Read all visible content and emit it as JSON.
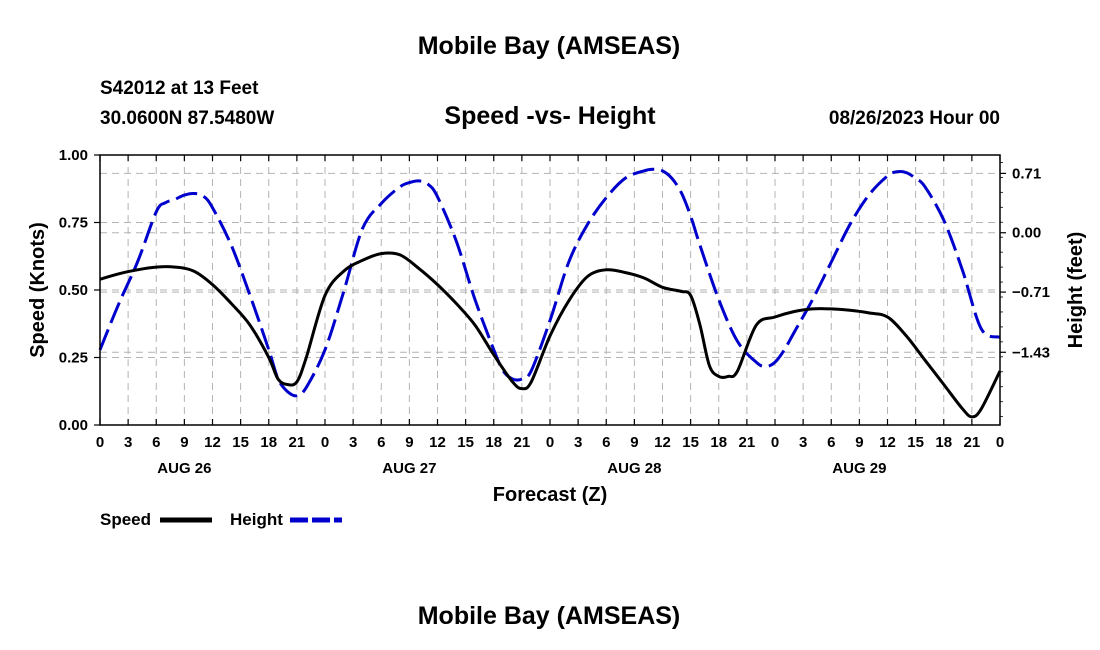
{
  "chart_data": {
    "type": "line",
    "title": "Mobile Bay (AMSEAS)",
    "subtitle": "Speed -vs- Height",
    "station": "S42012 at 13 Feet",
    "coords": "30.0600N  87.5480W",
    "run_time": "08/26/2023 Hour 00",
    "xlabel": "Forecast (Z)",
    "ylabel_left": "Speed (Knots)",
    "ylabel_right": "Height (feet)",
    "x_unit": "forecast hour",
    "xlim": [
      0,
      96
    ],
    "x_tick_labels": [
      "0",
      "3",
      "6",
      "9",
      "12",
      "15",
      "18",
      "21",
      "0",
      "3",
      "6",
      "9",
      "12",
      "15",
      "18",
      "21",
      "0",
      "3",
      "6",
      "9",
      "12",
      "15",
      "18",
      "21",
      "0",
      "3",
      "6",
      "9",
      "12",
      "15",
      "18",
      "21",
      "0"
    ],
    "day_labels": [
      {
        "text": "AUG 26",
        "hour": 9
      },
      {
        "text": "AUG 27",
        "hour": 33
      },
      {
        "text": "AUG 28",
        "hour": 57
      },
      {
        "text": "AUG 29",
        "hour": 81
      }
    ],
    "ylim_left": [
      0,
      1
    ],
    "yticks_left": [
      "0.00",
      "0.25",
      "0.50",
      "0.75",
      "1.00"
    ],
    "ylim_right": [
      -2.3,
      0.93
    ],
    "yticks_right_values": [
      0.71,
      0.0,
      -0.71,
      -1.43
    ],
    "yticks_right": [
      "0.71",
      "0.00",
      "−0.71",
      "−1.43"
    ],
    "grid": true,
    "legend_position": "bottom-left",
    "series": [
      {
        "name": "Speed",
        "color": "#000000",
        "style": "solid",
        "axis": "left",
        "x": [
          0,
          2,
          4,
          6,
          8,
          10,
          12,
          14,
          16,
          18,
          19,
          20,
          21,
          22,
          24,
          26,
          28,
          30,
          32,
          34,
          36,
          38,
          40,
          42,
          44,
          45,
          46,
          48,
          50,
          52,
          54,
          56,
          58,
          60,
          62,
          63,
          64,
          65,
          66,
          67,
          68,
          70,
          72,
          74,
          76,
          78,
          80,
          82,
          84,
          86,
          88,
          90,
          92,
          93,
          94,
          96
        ],
        "values": [
          0.54,
          0.56,
          0.575,
          0.585,
          0.585,
          0.57,
          0.52,
          0.45,
          0.37,
          0.25,
          0.17,
          0.15,
          0.16,
          0.25,
          0.48,
          0.57,
          0.61,
          0.635,
          0.63,
          0.58,
          0.52,
          0.45,
          0.37,
          0.26,
          0.16,
          0.135,
          0.16,
          0.33,
          0.46,
          0.55,
          0.575,
          0.565,
          0.545,
          0.51,
          0.495,
          0.48,
          0.37,
          0.22,
          0.18,
          0.18,
          0.2,
          0.37,
          0.4,
          0.42,
          0.43,
          0.43,
          0.425,
          0.415,
          0.4,
          0.33,
          0.24,
          0.15,
          0.06,
          0.03,
          0.06,
          0.2
        ]
      },
      {
        "name": "Height",
        "color": "#0000cc",
        "style": "dashed",
        "axis": "right",
        "x": [
          0,
          2,
          4,
          6,
          7,
          8,
          9,
          10,
          11,
          12,
          14,
          16,
          18,
          19,
          20,
          21,
          22,
          24,
          26,
          28,
          30,
          32,
          33,
          34,
          35,
          36,
          38,
          40,
          42,
          43,
          44,
          45,
          46,
          48,
          50,
          52,
          54,
          56,
          58,
          59,
          60,
          61,
          62,
          63,
          64,
          66,
          68,
          70,
          71,
          72,
          73,
          74,
          76,
          78,
          80,
          82,
          84,
          85,
          86,
          87,
          88,
          90,
          92,
          94,
          96
        ],
        "values": [
          -1.4,
          -0.85,
          -0.35,
          0.25,
          0.36,
          0.4,
          0.45,
          0.47,
          0.44,
          0.3,
          -0.15,
          -0.75,
          -1.4,
          -1.75,
          -1.9,
          -1.95,
          -1.85,
          -1.4,
          -0.7,
          0.05,
          0.35,
          0.55,
          0.6,
          0.62,
          0.58,
          0.43,
          -0.1,
          -0.8,
          -1.4,
          -1.65,
          -1.75,
          -1.75,
          -1.65,
          -1.05,
          -0.35,
          0.1,
          0.42,
          0.65,
          0.74,
          0.76,
          0.74,
          0.65,
          0.48,
          0.2,
          -0.15,
          -0.8,
          -1.3,
          -1.55,
          -1.6,
          -1.55,
          -1.4,
          -1.2,
          -0.8,
          -0.35,
          0.1,
          0.45,
          0.68,
          0.73,
          0.72,
          0.65,
          0.55,
          0.15,
          -0.45,
          -1.15,
          -1.25
        ]
      }
    ],
    "footer_title": "Mobile Bay (AMSEAS)"
  }
}
